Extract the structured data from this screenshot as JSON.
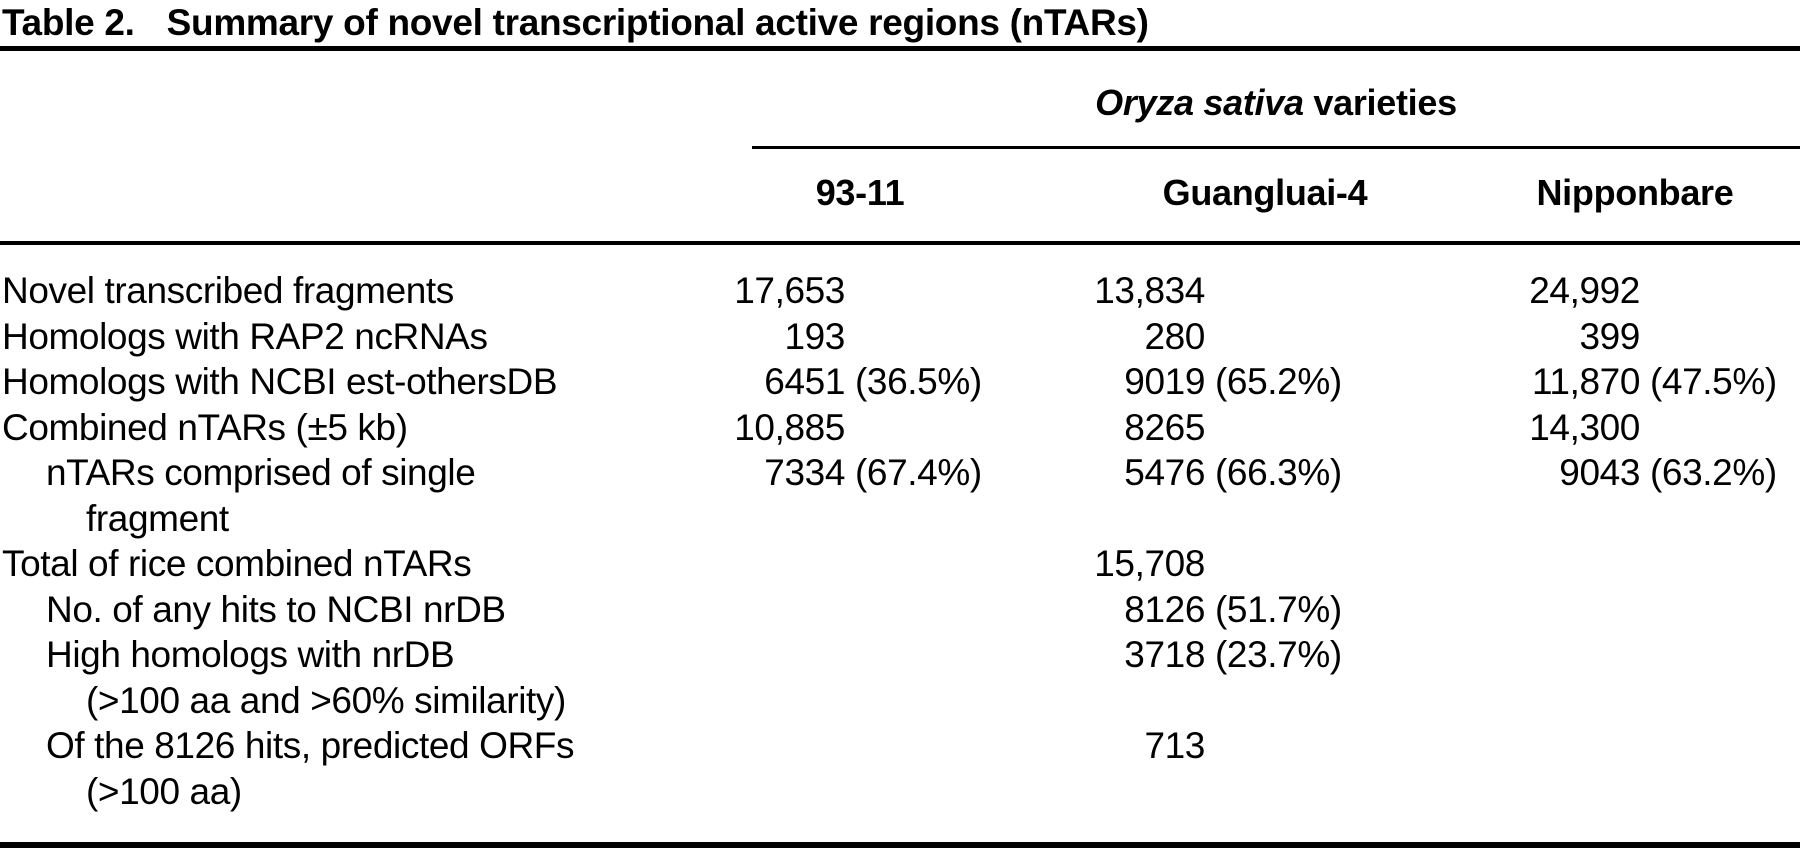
{
  "table": {
    "title_label": "Table 2.",
    "title_text": "Summary of novel transcriptional active regions (nTARs)",
    "group_header": {
      "italic_part": "Oryza sativa",
      "normal_part": " varieties"
    },
    "columns": [
      "93-11",
      "Guangluai-4",
      "Nipponbare"
    ],
    "rows": [
      {
        "label": "Novel transcribed fragments",
        "values": [
          {
            "num": "17,653",
            "pct": ""
          },
          {
            "num": "13,834",
            "pct": ""
          },
          {
            "num": "24,992",
            "pct": ""
          }
        ]
      },
      {
        "label": "Homologs with RAP2 ncRNAs",
        "values": [
          {
            "num": "193",
            "pct": ""
          },
          {
            "num": "280",
            "pct": ""
          },
          {
            "num": "399",
            "pct": ""
          }
        ]
      },
      {
        "label": "Homologs with NCBI est-othersDB",
        "values": [
          {
            "num": "6451",
            "pct": "(36.5%)"
          },
          {
            "num": "9019",
            "pct": "(65.2%)"
          },
          {
            "num": "11,870",
            "pct": "(47.5%)"
          }
        ]
      },
      {
        "label": "Combined nTARs (±5 kb)",
        "values": [
          {
            "num": "10,885",
            "pct": ""
          },
          {
            "num": "8265",
            "pct": ""
          },
          {
            "num": "14,300",
            "pct": ""
          }
        ]
      },
      {
        "label": "nTARs comprised of single",
        "label2": "fragment",
        "values": [
          {
            "num": "7334",
            "pct": "(67.4%)"
          },
          {
            "num": "5476",
            "pct": "(66.3%)"
          },
          {
            "num": "9043",
            "pct": "(63.2%)"
          }
        ]
      },
      {
        "label": "Total of rice combined nTARs",
        "values": [
          {
            "num": "",
            "pct": ""
          },
          {
            "num": "15,708",
            "pct": ""
          },
          {
            "num": "",
            "pct": ""
          }
        ]
      },
      {
        "label": "No. of any hits to NCBI nrDB",
        "values": [
          {
            "num": "",
            "pct": ""
          },
          {
            "num": "8126",
            "pct": "(51.7%)"
          },
          {
            "num": "",
            "pct": ""
          }
        ]
      },
      {
        "label": "High homologs with nrDB",
        "label2": "(>100 aa and >60% similarity)",
        "values": [
          {
            "num": "",
            "pct": ""
          },
          {
            "num": "3718",
            "pct": "(23.7%)"
          },
          {
            "num": "",
            "pct": ""
          }
        ]
      },
      {
        "label": "Of the 8126 hits, predicted ORFs",
        "label2": "(>100 aa)",
        "values": [
          {
            "num": "",
            "pct": ""
          },
          {
            "num": "713",
            "pct": ""
          },
          {
            "num": "",
            "pct": ""
          }
        ]
      }
    ]
  },
  "colors": {
    "background": "#ffffff",
    "text": "#000000",
    "rule": "#000000"
  }
}
